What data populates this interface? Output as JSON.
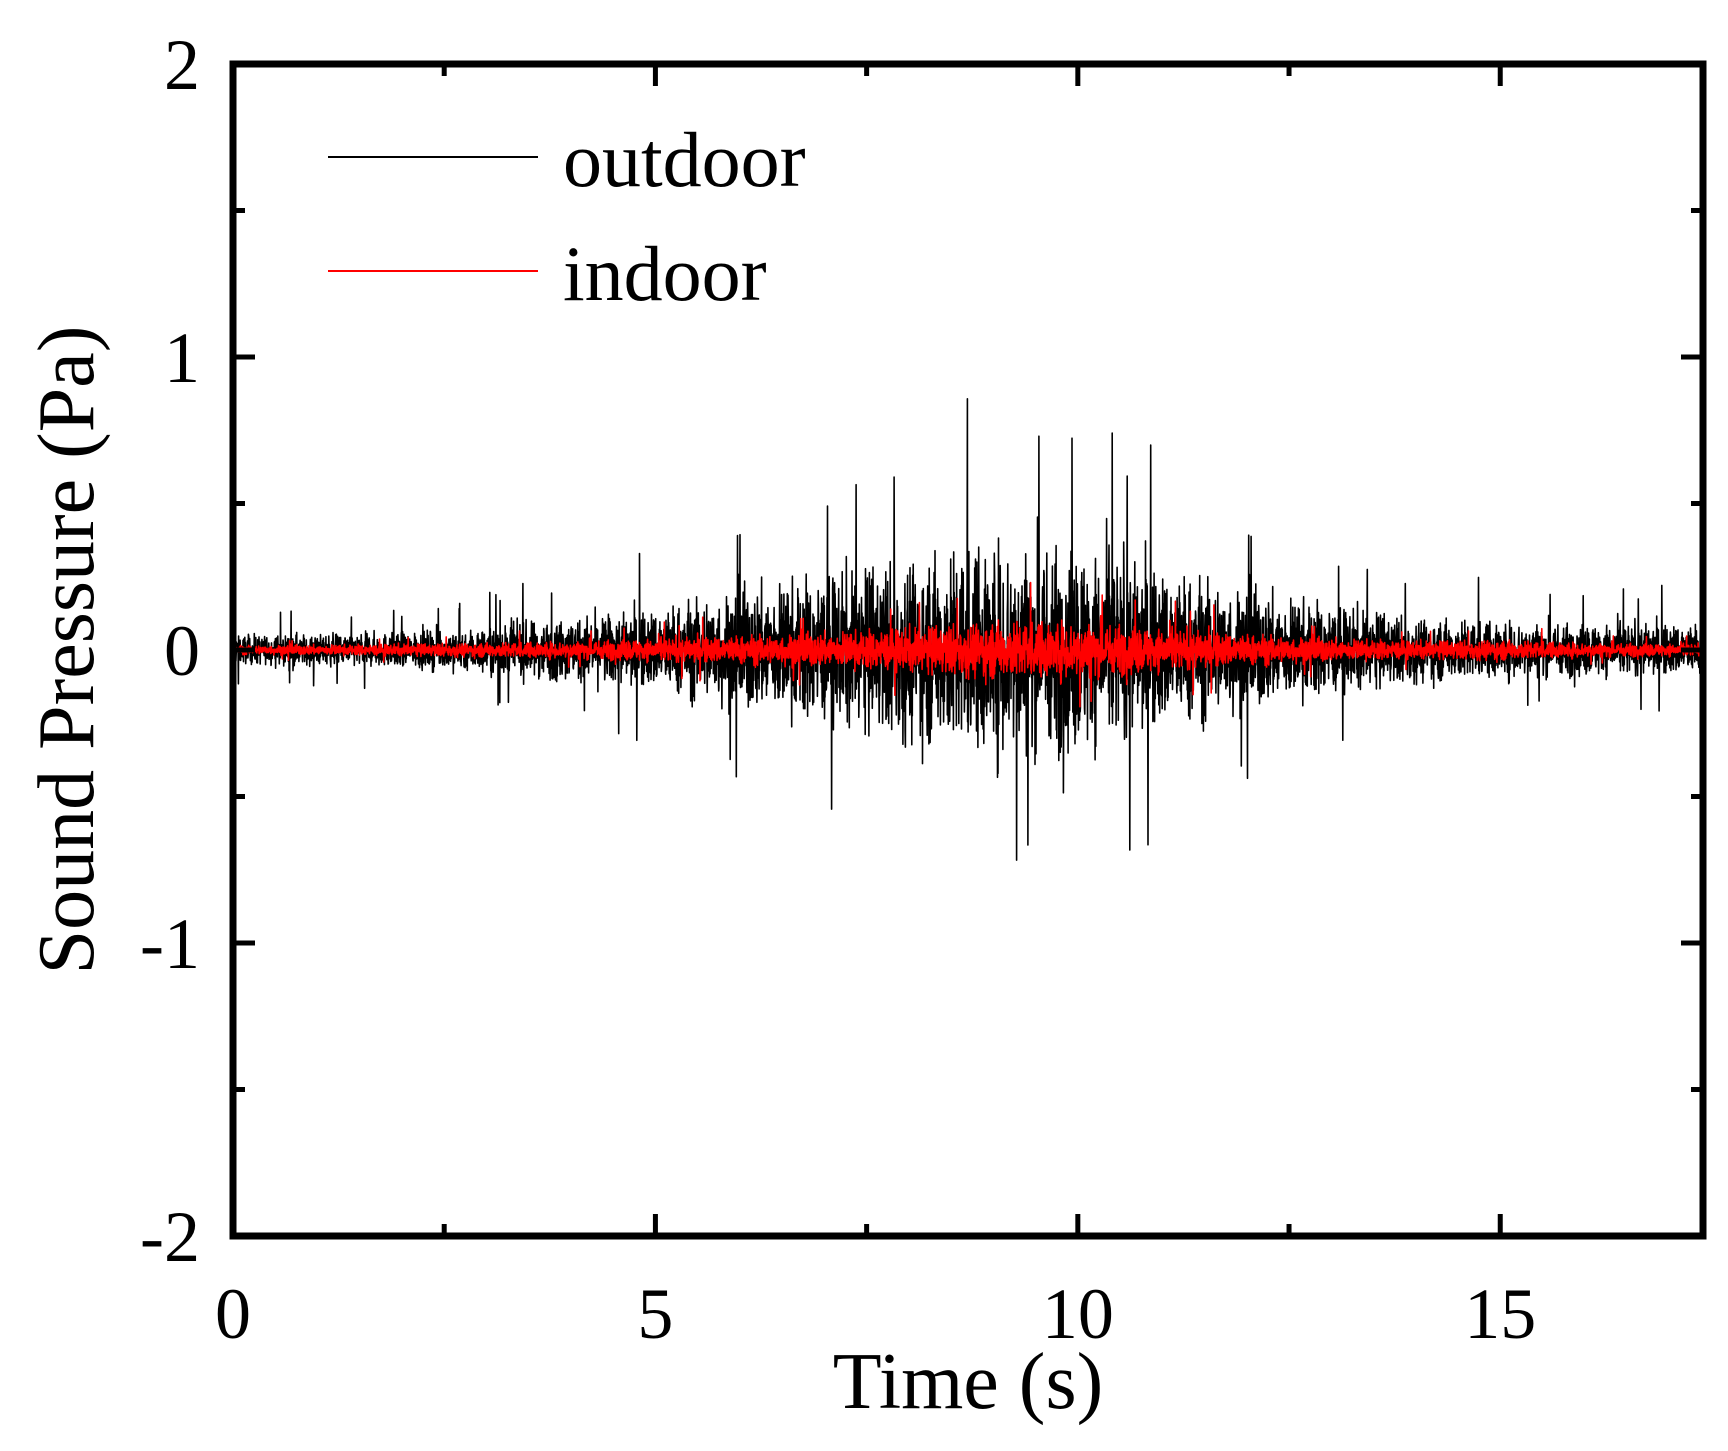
{
  "chart_data": {
    "type": "line",
    "title": "",
    "xlabel": "Time (s)",
    "ylabel": "Sound Pressure (Pa)",
    "xlim": [
      0,
      17.4
    ],
    "ylim": [
      -2,
      2
    ],
    "x_ticks": [
      0,
      5,
      10,
      15
    ],
    "x_tick_labels": [
      "0",
      "5",
      "10",
      "15"
    ],
    "y_ticks": [
      -2,
      -1,
      0,
      1,
      2
    ],
    "y_tick_labels": [
      "-2",
      "-1",
      "0",
      "1",
      "2"
    ],
    "legend_position": "top-left",
    "series": [
      {
        "name": "outdoor",
        "color": "#000000",
        "envelope_time": [
          0,
          2,
          3,
          4,
          5,
          6,
          7,
          8,
          9,
          10,
          11,
          12,
          13,
          14,
          15,
          16,
          17.4
        ],
        "envelope_amplitude": [
          0.1,
          0.12,
          0.16,
          0.22,
          0.28,
          0.42,
          0.5,
          0.62,
          0.75,
          0.7,
          0.55,
          0.42,
          0.3,
          0.22,
          0.2,
          0.18,
          0.18
        ],
        "peak_max": 0.88,
        "peak_min": -0.82
      },
      {
        "name": "indoor",
        "color": "#ff0000",
        "envelope_time": [
          0,
          2,
          4,
          5,
          6,
          7,
          8,
          9,
          10,
          11,
          12,
          13,
          14,
          15,
          16,
          17.4
        ],
        "envelope_amplitude": [
          0.03,
          0.04,
          0.06,
          0.08,
          0.1,
          0.12,
          0.15,
          0.2,
          0.2,
          0.15,
          0.11,
          0.08,
          0.06,
          0.07,
          0.05,
          0.04
        ],
        "peak_max": 0.23,
        "peak_min": -0.23
      }
    ]
  }
}
